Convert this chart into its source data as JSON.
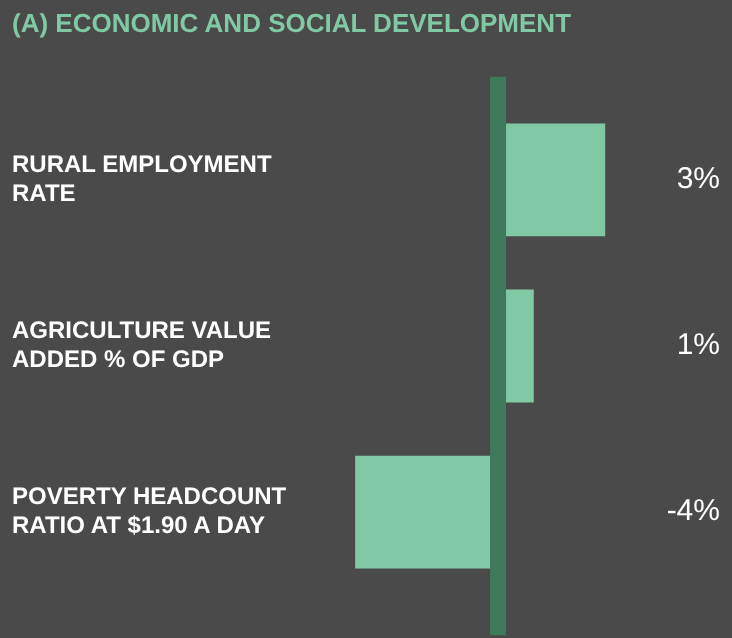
{
  "chart_data": {
    "type": "bar",
    "orientation": "horizontal",
    "title": "(A) ECONOMIC AND SOCIAL DEVELOPMENT",
    "categories": [
      "RURAL EMPLOYMENT RATE",
      "AGRICULTURE VALUE ADDED % OF GDP",
      "POVERTY HEADCOUNT RATIO AT $1.90 A DAY"
    ],
    "values": [
      3,
      1,
      -4
    ],
    "value_labels": [
      "3%",
      "1%",
      "-4%"
    ],
    "color": "#80c9a4",
    "ref_lines": [
      {
        "axis": "x",
        "value": 0,
        "color": "#3f7a5c"
      }
    ]
  }
}
